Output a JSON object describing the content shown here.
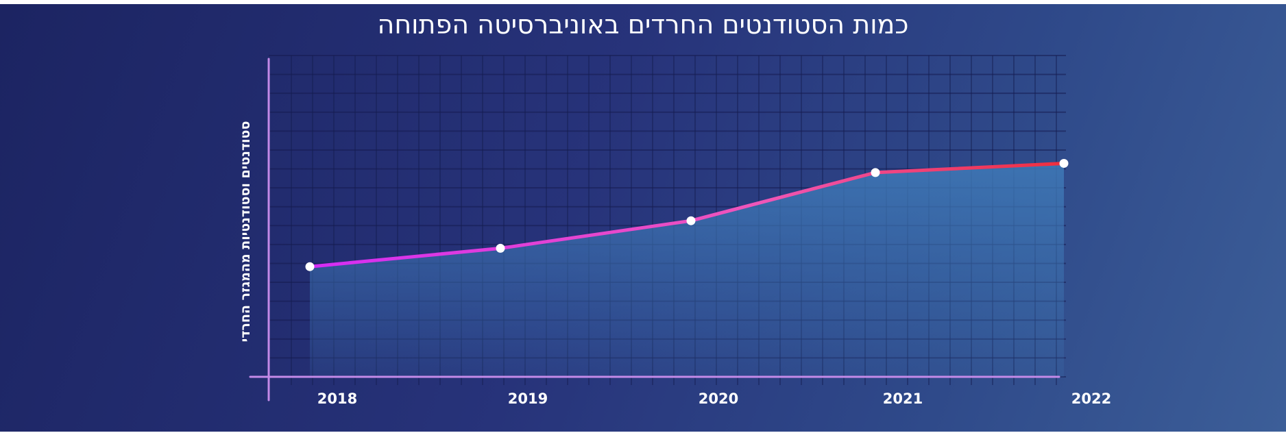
{
  "chart_data": {
    "type": "area",
    "title": "כמות הסטודנטים החרדים באוניברסיטה הפתוחה",
    "xlabel": "",
    "ylabel": "סטודנטים וסטודנטיות מהמגזר החרדי",
    "categories": [
      "2018",
      "2019",
      "2020",
      "2021",
      "2022"
    ],
    "series": [
      {
        "values": [
          2400,
          2800,
          3400,
          4450,
          4650
        ]
      }
    ],
    "ylim": [
      0,
      7000
    ],
    "grid": true,
    "y_tick_labels_shown": false,
    "colors": {
      "line_start": "#d42cf5",
      "line_mid": "#f056b8",
      "line_end": "#ef2e3c",
      "area": "#3f7ab8",
      "marker": "#ffffff",
      "axis": "#c48ae8"
    }
  }
}
